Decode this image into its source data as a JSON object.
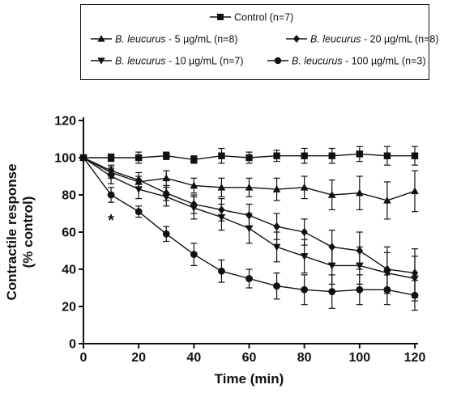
{
  "chart_data": {
    "type": "line",
    "xlabel": "Time (min)",
    "ylabel_lines": [
      "Contractile response",
      "(% control)"
    ],
    "xlim": [
      0,
      120
    ],
    "ylim": [
      0,
      120
    ],
    "xticks": [
      0,
      20,
      40,
      60,
      80,
      100,
      120
    ],
    "yticks": [
      0,
      20,
      40,
      60,
      80,
      100,
      120
    ],
    "grid": false,
    "legend_position": "top",
    "x": [
      0,
      10,
      20,
      30,
      40,
      50,
      60,
      70,
      80,
      90,
      100,
      110,
      120
    ],
    "series": [
      {
        "name": "Control (n=7)",
        "marker": "square",
        "values": [
          100,
          100,
          100,
          101,
          99,
          101,
          100,
          101,
          101,
          101,
          102,
          101,
          101
        ],
        "errors": [
          0,
          2,
          3,
          2,
          2,
          4,
          3,
          3,
          4,
          4,
          4,
          5,
          5
        ]
      },
      {
        "name_italic": "B. leucurus",
        "name_rest": " - 5 µg/mL (n=8)",
        "marker": "triangle-up",
        "values": [
          100,
          92,
          87,
          89,
          85,
          84,
          84,
          83,
          84,
          80,
          81,
          77,
          82
        ],
        "errors": [
          0,
          3,
          3,
          4,
          4,
          5,
          5,
          6,
          6,
          8,
          9,
          10,
          11
        ]
      },
      {
        "name_italic": "B. leucurus",
        "name_rest": " - 20 µg/mL (n=8)",
        "marker": "diamond",
        "values": [
          100,
          93,
          88,
          81,
          75,
          72,
          69,
          63,
          60,
          52,
          50,
          40,
          38
        ],
        "errors": [
          0,
          3,
          4,
          4,
          5,
          6,
          6,
          7,
          7,
          9,
          10,
          12,
          13
        ]
      },
      {
        "name_italic": "B. leucurus",
        "name_rest": " - 10 µg/mL (n=7)",
        "marker": "triangle-down",
        "values": [
          100,
          90,
          83,
          79,
          73,
          68,
          62,
          52,
          47,
          42,
          42,
          38,
          35
        ],
        "errors": [
          0,
          4,
          5,
          5,
          6,
          7,
          8,
          8,
          9,
          10,
          10,
          11,
          12
        ]
      },
      {
        "name_italic": "B. leucurus",
        "name_rest": " - 100 µg/mL (n=3)",
        "marker": "circle",
        "values": [
          100,
          80,
          71,
          59,
          48,
          39,
          35,
          31,
          29,
          28,
          29,
          29,
          26
        ],
        "errors": [
          0,
          4,
          3,
          4,
          6,
          6,
          5,
          7,
          8,
          9,
          8,
          8,
          8
        ]
      }
    ],
    "annotations": [
      {
        "text": "*",
        "x": 10,
        "y": 67
      }
    ]
  }
}
